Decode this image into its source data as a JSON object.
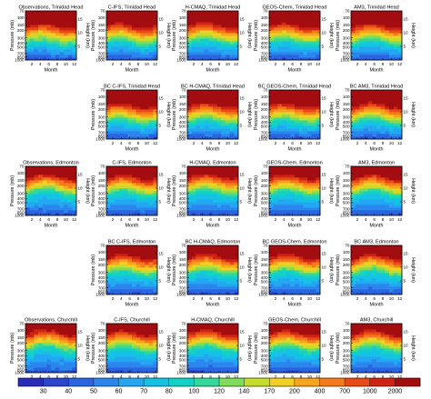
{
  "chart_data": {
    "type": "heatmap",
    "x_axis": {
      "label": "Month",
      "ticks": [
        "2",
        "4",
        "6",
        "8",
        "10",
        "12"
      ]
    },
    "y_axis_left": {
      "label": "Pressure (mb)",
      "ticks": [
        "70",
        "100",
        "150",
        "200",
        "300",
        "400",
        "500",
        "700",
        "850",
        "1000"
      ],
      "scale": "log"
    },
    "y_axis_right": {
      "label": "Height (km)",
      "ticks": [
        "15",
        "10",
        "5"
      ]
    },
    "colorbar": {
      "ticks": [
        "30",
        "40",
        "50",
        "60",
        "70",
        "80",
        "100",
        "120",
        "140",
        "170",
        "200",
        "400",
        "700",
        "1000",
        "2000"
      ],
      "colors": [
        "#2a2bb8",
        "#2946cc",
        "#2a64e0",
        "#2b86ee",
        "#24a7f3",
        "#15c2e6",
        "#12d2c6",
        "#34d89a",
        "#7fdc58",
        "#c5dc2c",
        "#f2cf24",
        "#f8a51e",
        "#f47a1a",
        "#e84b16",
        "#cf2414",
        "#a30d10"
      ]
    },
    "rows": [
      [
        {
          "title": "Observations, Trinidad Head",
          "tropopause": 4.9,
          "ampl": 0.7,
          "phase": 2.0,
          "noise": 0.5,
          "seed": 11
        },
        {
          "title": "C-IFS, Trinidad Head",
          "tropopause": 5.0,
          "ampl": 0.9,
          "phase": 1.5,
          "noise": 0.2,
          "seed": 12
        },
        {
          "title": "H-CMAQ, Trinidad Head",
          "tropopause": 5.2,
          "ampl": 0.8,
          "phase": 2.2,
          "noise": 0.2,
          "seed": 13
        },
        {
          "title": "GEOS-Chem, Trinidad Head",
          "tropopause": 5.1,
          "ampl": 0.7,
          "phase": 1.8,
          "noise": 0.2,
          "seed": 14
        },
        {
          "title": "AM3, Trinidad Head",
          "tropopause": 5.0,
          "ampl": 0.8,
          "phase": 2.5,
          "noise": 0.2,
          "seed": 15
        }
      ],
      [
        null,
        {
          "title": "BC C-IFS, Trinidad Head",
          "tropopause": 4.8,
          "ampl": 0.8,
          "phase": 1.5,
          "noise": 0.3,
          "seed": 21
        },
        {
          "title": "BC H-CMAQ, Trinidad Head",
          "tropopause": 4.9,
          "ampl": 0.8,
          "phase": 2.2,
          "noise": 0.3,
          "seed": 22
        },
        {
          "title": "BC GEOS-Chem, Trinidad Head",
          "tropopause": 4.9,
          "ampl": 0.7,
          "phase": 1.8,
          "noise": 0.3,
          "seed": 23
        },
        {
          "title": "BC AM3, Trinidad Head",
          "tropopause": 4.9,
          "ampl": 0.8,
          "phase": 2.5,
          "noise": 0.3,
          "seed": 24
        }
      ],
      [
        {
          "title": "Observations, Edmonton",
          "tropopause": 6.4,
          "ampl": 0.9,
          "phase": 2.5,
          "noise": 0.5,
          "seed": 31
        },
        {
          "title": "C-IFS, Edmonton",
          "tropopause": 6.2,
          "ampl": 0.8,
          "phase": 2.0,
          "noise": 0.2,
          "seed": 32
        },
        {
          "title": "H-CMAQ, Edmonton",
          "tropopause": 6.5,
          "ampl": 0.8,
          "phase": 2.3,
          "noise": 0.2,
          "seed": 33
        },
        {
          "title": "GEOS-Chem, Edmonton",
          "tropopause": 6.3,
          "ampl": 0.8,
          "phase": 2.1,
          "noise": 0.2,
          "seed": 34
        },
        {
          "title": "AM3, Edmonton",
          "tropopause": 6.3,
          "ampl": 0.9,
          "phase": 2.6,
          "noise": 0.2,
          "seed": 35
        }
      ],
      [
        null,
        {
          "title": "BC C-IFS, Edmonton",
          "tropopause": 6.0,
          "ampl": 0.8,
          "phase": 2.0,
          "noise": 0.3,
          "seed": 41
        },
        {
          "title": "BC H-CMAQ, Edmonton",
          "tropopause": 6.2,
          "ampl": 0.8,
          "phase": 2.3,
          "noise": 0.3,
          "seed": 42
        },
        {
          "title": "BC GEOS-Chem, Edmonton",
          "tropopause": 6.1,
          "ampl": 0.8,
          "phase": 2.1,
          "noise": 0.3,
          "seed": 43
        },
        {
          "title": "BC AM3, Edmonton",
          "tropopause": 6.1,
          "ampl": 0.9,
          "phase": 2.6,
          "noise": 0.3,
          "seed": 44
        }
      ],
      [
        {
          "title": "Observations, Churchill",
          "tropopause": 6.8,
          "ampl": 0.9,
          "phase": 2.5,
          "noise": 0.5,
          "seed": 51
        },
        {
          "title": "C-IFS, Churchill",
          "tropopause": 6.6,
          "ampl": 0.8,
          "phase": 2.0,
          "noise": 0.2,
          "seed": 52
        },
        {
          "title": "H-CMAQ, Churchill",
          "tropopause": 6.9,
          "ampl": 0.8,
          "phase": 2.3,
          "noise": 0.2,
          "seed": 53
        },
        {
          "title": "GEOS-Chem, Churchill",
          "tropopause": 6.7,
          "ampl": 0.8,
          "phase": 2.1,
          "noise": 0.2,
          "seed": 54
        },
        {
          "title": "AM3, Churchill",
          "tropopause": 6.7,
          "ampl": 0.9,
          "phase": 2.6,
          "noise": 0.2,
          "seed": 55
        }
      ]
    ]
  }
}
